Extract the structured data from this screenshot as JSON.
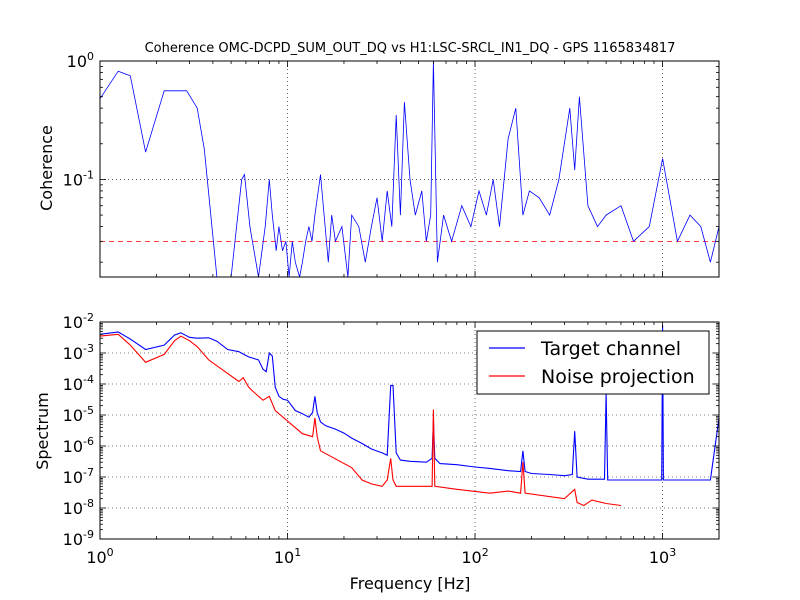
{
  "chart_data": [
    {
      "type": "line",
      "title": "Coherence OMC-DCPD_SUM_OUT_DQ vs H1:LSC-SRCL_IN1_DQ - GPS 1165834817",
      "xlabel": "",
      "ylabel": "Coherence",
      "xscale": "log",
      "yscale": "log",
      "xlim": [
        1,
        2000
      ],
      "ylim": [
        0.015,
        1
      ],
      "yticks": [
        {
          "v": 1,
          "m": "10",
          "e": "0"
        },
        {
          "v": 0.1,
          "m": "10",
          "e": "-1"
        }
      ],
      "grid": true,
      "threshold": {
        "value": 0.03,
        "color": "#ff0000",
        "style": "dashed"
      },
      "series": [
        {
          "color": "#0000ff",
          "x": [
            1,
            1.25,
            1.45,
            1.75,
            2.2,
            2.5,
            2.9,
            3.3,
            3.6,
            3.9,
            4.2,
            5.0,
            5.7,
            5.9,
            6.3,
            7.0,
            7.6,
            8.0,
            8.3,
            8.7,
            9.0,
            9.4,
            9.8,
            10.2,
            10.6,
            11.0,
            11.6,
            12.0,
            12.5,
            13.0,
            13.5,
            14.0,
            15.0,
            16.5,
            17.2,
            18.0,
            19.5,
            21.0,
            22.0,
            24.0,
            26.0,
            28.0,
            30.0,
            32.0,
            34.0,
            36.0,
            38.0,
            40.0,
            42.0,
            45.0,
            48.0,
            52.0,
            55.0,
            58.0,
            60.0,
            63.0,
            68.0,
            75.0,
            85.0,
            95.0,
            105.0,
            115.0,
            125.0,
            135.0,
            150.0,
            165.0,
            180.0,
            195.0,
            220.0,
            250.0,
            280.0,
            320.0,
            340.0,
            360.0,
            400.0,
            450.0,
            500.0,
            600.0,
            700.0,
            850.0,
            1000.0,
            1200.0,
            1400.0,
            1600.0,
            1800.0,
            2000.0
          ],
          "y": [
            0.48,
            0.82,
            0.75,
            0.17,
            0.56,
            0.56,
            0.56,
            0.4,
            0.18,
            0.05,
            0.015,
            0.015,
            0.1,
            0.11,
            0.04,
            0.015,
            0.04,
            0.1,
            0.05,
            0.025,
            0.04,
            0.025,
            0.03,
            0.015,
            0.03,
            0.02,
            0.015,
            0.02,
            0.03,
            0.04,
            0.03,
            0.05,
            0.11,
            0.02,
            0.05,
            0.03,
            0.04,
            0.015,
            0.05,
            0.04,
            0.02,
            0.04,
            0.07,
            0.03,
            0.08,
            0.04,
            0.35,
            0.05,
            0.45,
            0.1,
            0.05,
            0.08,
            0.03,
            0.05,
            1.0,
            0.02,
            0.05,
            0.03,
            0.06,
            0.04,
            0.08,
            0.05,
            0.1,
            0.04,
            0.22,
            0.4,
            0.05,
            0.08,
            0.07,
            0.05,
            0.1,
            0.4,
            0.12,
            0.5,
            0.06,
            0.04,
            0.05,
            0.06,
            0.03,
            0.04,
            0.15,
            0.03,
            0.05,
            0.04,
            0.02,
            0.04
          ]
        }
      ]
    },
    {
      "type": "line",
      "title": "",
      "xlabel": "Frequency [Hz]",
      "ylabel": "Spectrum",
      "xscale": "log",
      "yscale": "log",
      "xlim": [
        1,
        2000
      ],
      "ylim": [
        1e-09,
        0.01
      ],
      "xticks": [
        {
          "v": 1,
          "m": "10",
          "e": "0"
        },
        {
          "v": 10,
          "m": "10",
          "e": "1"
        },
        {
          "v": 100,
          "m": "10",
          "e": "2"
        },
        {
          "v": 1000,
          "m": "10",
          "e": "3"
        }
      ],
      "yticks": [
        {
          "v": 0.01,
          "m": "10",
          "e": "-2"
        },
        {
          "v": 0.001,
          "m": "10",
          "e": "-3"
        },
        {
          "v": 0.0001,
          "m": "10",
          "e": "-4"
        },
        {
          "v": 1e-05,
          "m": "10",
          "e": "-5"
        },
        {
          "v": 1e-06,
          "m": "10",
          "e": "-6"
        },
        {
          "v": 1e-07,
          "m": "10",
          "e": "-7"
        },
        {
          "v": 1e-08,
          "m": "10",
          "e": "-8"
        },
        {
          "v": 1e-09,
          "m": "10",
          "e": "-9"
        }
      ],
      "grid": true,
      "legend": "top-right",
      "series": [
        {
          "name": "Target channel",
          "color": "#0000ff",
          "x": [
            1,
            1.25,
            1.45,
            1.75,
            2.2,
            2.5,
            2.7,
            3.0,
            3.3,
            3.8,
            4.2,
            4.8,
            5.5,
            6.2,
            7.0,
            7.4,
            7.7,
            8.0,
            8.3,
            8.6,
            9.0,
            9.5,
            10.0,
            11.0,
            12.0,
            13.0,
            13.6,
            14.0,
            14.4,
            15.0,
            16.0,
            18.0,
            20.0,
            22.0,
            25.0,
            28.0,
            32.0,
            34.0,
            35.5,
            36.5,
            38.0,
            40.0,
            45.0,
            55.0,
            59.0,
            60.0,
            61.0,
            65.0,
            80.0,
            100.0,
            120.0,
            150.0,
            175.0,
            180.0,
            185.0,
            200.0,
            250.0,
            300.0,
            330.0,
            340.0,
            350.0,
            400.0,
            490.0,
            500.0,
            510.0,
            600.0,
            800.0,
            990.0,
            1000.0,
            1010.0,
            1200.0,
            1400.0,
            1600.0,
            1800.0,
            2000.0
          ],
          "y": [
            0.004,
            0.0048,
            0.0028,
            0.0013,
            0.0018,
            0.0038,
            0.0045,
            0.0032,
            0.003,
            0.0031,
            0.0024,
            0.0013,
            0.0011,
            0.00075,
            0.0006,
            0.0003,
            0.00025,
            0.001,
            0.0008,
            8e-05,
            4e-05,
            3.2e-05,
            3e-05,
            1.4e-05,
            1.1e-05,
            8.5e-06,
            1.2e-05,
            4e-05,
            1.2e-05,
            6e-06,
            4.5e-06,
            3.5e-06,
            2.6e-06,
            1.8e-06,
            1.2e-06,
            8e-07,
            6e-07,
            5e-07,
            9e-05,
            9e-05,
            6e-07,
            3.5e-07,
            3.2e-07,
            3e-07,
            4e-07,
            7e-06,
            4e-07,
            2.7e-07,
            2.5e-07,
            2.1e-07,
            1.9e-07,
            1.6e-07,
            1.5e-07,
            7e-07,
            1.5e-07,
            1.3e-07,
            1.2e-07,
            1.1e-07,
            1.2e-07,
            3e-06,
            1e-07,
            8.5e-08,
            8.5e-08,
            5e-05,
            8e-08,
            8e-08,
            8e-08,
            8e-08,
            0.008,
            8e-08,
            8e-08,
            8e-08,
            8e-08,
            8e-08,
            8e-06
          ]
        },
        {
          "name": "Noise projection",
          "color": "#ff0000",
          "x": [
            1,
            1.25,
            1.45,
            1.75,
            2.2,
            2.5,
            2.7,
            3.0,
            3.3,
            3.8,
            5.5,
            5.8,
            6.2,
            6.5,
            7.4,
            8.0,
            8.6,
            12.0,
            13.6,
            14.0,
            14.4,
            15.0,
            22.0,
            25.0,
            28.0,
            32.0,
            34.0,
            35.5,
            36.5,
            38.0,
            45.0,
            59.0,
            60.0,
            61.0,
            80.0,
            120.0,
            150.0,
            175.0,
            180.0,
            185.0,
            300.0,
            340.0,
            350.0,
            380.0,
            420.0,
            500.0,
            600.0
          ],
          "y": [
            0.0035,
            0.004,
            0.0018,
            0.0005,
            0.0009,
            0.0025,
            0.0035,
            0.0025,
            0.0016,
            0.0006,
            0.00012,
            0.00016,
            8e-05,
            6e-05,
            3e-05,
            4e-05,
            1.4e-05,
            2.5e-06,
            2e-06,
            8e-06,
            2e-06,
            7e-07,
            2e-07,
            8e-08,
            6e-08,
            5e-08,
            8e-08,
            4e-07,
            8e-08,
            5e-08,
            5e-08,
            5e-08,
            1.5e-05,
            5e-08,
            4e-08,
            3e-08,
            3.5e-08,
            3e-08,
            3e-07,
            3e-08,
            2e-08,
            4e-08,
            1.5e-08,
            1.2e-08,
            1.8e-08,
            1.4e-08,
            1.2e-08
          ]
        }
      ]
    }
  ]
}
